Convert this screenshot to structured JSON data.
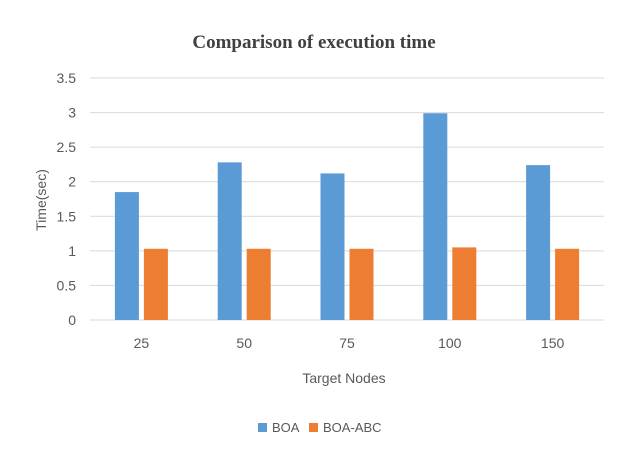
{
  "chart_data": {
    "type": "bar",
    "title": "Comparison of execution time",
    "xlabel": "Target Nodes",
    "ylabel": "Time(sec)",
    "categories": [
      "25",
      "50",
      "75",
      "100",
      "150"
    ],
    "series": [
      {
        "name": "BOA",
        "values": [
          1.85,
          2.28,
          2.12,
          2.99,
          2.24
        ],
        "color": "#5b9bd5"
      },
      {
        "name": "BOA-ABC",
        "values": [
          1.03,
          1.03,
          1.03,
          1.05,
          1.03
        ],
        "color": "#ed7d31"
      }
    ],
    "ylim": [
      0,
      3.5
    ],
    "yticks": [
      "0",
      "0.5",
      "1",
      "1.5",
      "2",
      "2.5",
      "3",
      "3.5"
    ],
    "grid": true,
    "legend_position": "bottom"
  }
}
